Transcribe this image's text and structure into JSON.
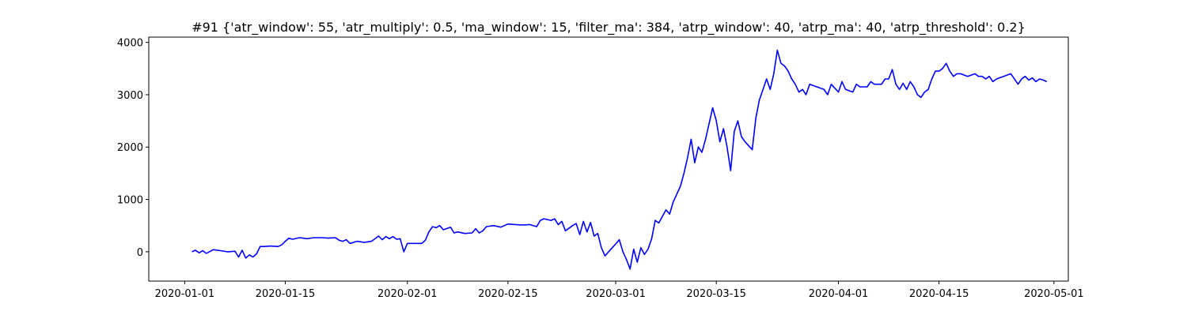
{
  "chart_data": {
    "type": "line",
    "title": "#91 {'atr_window': 55, 'atr_multiply': 0.5, 'ma_window': 15, 'filter_ma': 384, 'atrp_window': 40, 'atrp_ma': 40, 'atrp_threshold': 0.2}",
    "xlabel": "",
    "ylabel": "",
    "x_type": "date",
    "xlim": [
      "2019-12-27",
      "2020-05-03"
    ],
    "ylim": [
      -560,
      4100
    ],
    "x_ticks": [
      {
        "value": "2020-01-01",
        "label": "2020-01-01"
      },
      {
        "value": "2020-01-15",
        "label": "2020-01-15"
      },
      {
        "value": "2020-02-01",
        "label": "2020-02-01"
      },
      {
        "value": "2020-02-15",
        "label": "2020-02-15"
      },
      {
        "value": "2020-03-01",
        "label": "2020-03-01"
      },
      {
        "value": "2020-03-15",
        "label": "2020-03-15"
      },
      {
        "value": "2020-04-01",
        "label": "2020-04-01"
      },
      {
        "value": "2020-04-15",
        "label": "2020-04-15"
      },
      {
        "value": "2020-05-01",
        "label": "2020-05-01"
      }
    ],
    "y_ticks": [
      {
        "value": 0,
        "label": "0"
      },
      {
        "value": 1000,
        "label": "1000"
      },
      {
        "value": 2000,
        "label": "2000"
      },
      {
        "value": 3000,
        "label": "3000"
      },
      {
        "value": 4000,
        "label": "4000"
      }
    ],
    "grid": false,
    "legend": "none",
    "series": [
      {
        "color": "#0000ff",
        "points": [
          [
            "2020-01-02",
            0
          ],
          [
            "2020-01-02T12:00",
            30
          ],
          [
            "2020-01-03",
            -20
          ],
          [
            "2020-01-03T12:00",
            20
          ],
          [
            "2020-01-04",
            -30
          ],
          [
            "2020-01-05",
            40
          ],
          [
            "2020-01-06",
            20
          ],
          [
            "2020-01-07",
            0
          ],
          [
            "2020-01-08",
            10
          ],
          [
            "2020-01-08T12:00",
            -100
          ],
          [
            "2020-01-09",
            30
          ],
          [
            "2020-01-09T12:00",
            -120
          ],
          [
            "2020-01-10",
            -60
          ],
          [
            "2020-01-10T12:00",
            -100
          ],
          [
            "2020-01-11",
            -40
          ],
          [
            "2020-01-11T12:00",
            100
          ],
          [
            "2020-01-12",
            100
          ],
          [
            "2020-01-13",
            110
          ],
          [
            "2020-01-14",
            100
          ],
          [
            "2020-01-14T12:00",
            130
          ],
          [
            "2020-01-15",
            200
          ],
          [
            "2020-01-15T12:00",
            260
          ],
          [
            "2020-01-16",
            240
          ],
          [
            "2020-01-17",
            270
          ],
          [
            "2020-01-18",
            250
          ],
          [
            "2020-01-19",
            270
          ],
          [
            "2020-01-20",
            270
          ],
          [
            "2020-01-21",
            260
          ],
          [
            "2020-01-22",
            270
          ],
          [
            "2020-01-22T12:00",
            220
          ],
          [
            "2020-01-23",
            200
          ],
          [
            "2020-01-23T12:00",
            230
          ],
          [
            "2020-01-24",
            160
          ],
          [
            "2020-01-25",
            200
          ],
          [
            "2020-01-26",
            180
          ],
          [
            "2020-01-27",
            200
          ],
          [
            "2020-01-28",
            300
          ],
          [
            "2020-01-28T12:00",
            230
          ],
          [
            "2020-01-29",
            290
          ],
          [
            "2020-01-29T12:00",
            250
          ],
          [
            "2020-01-30",
            290
          ],
          [
            "2020-01-30T12:00",
            240
          ],
          [
            "2020-01-31",
            250
          ],
          [
            "2020-01-31T12:00",
            0
          ],
          [
            "2020-02-01",
            160
          ],
          [
            "2020-02-02",
            160
          ],
          [
            "2020-02-03",
            160
          ],
          [
            "2020-02-03T12:00",
            220
          ],
          [
            "2020-02-04",
            380
          ],
          [
            "2020-02-04T12:00",
            480
          ],
          [
            "2020-02-05",
            460
          ],
          [
            "2020-02-05T12:00",
            500
          ],
          [
            "2020-02-06",
            420
          ],
          [
            "2020-02-07",
            470
          ],
          [
            "2020-02-07T12:00",
            360
          ],
          [
            "2020-02-08",
            380
          ],
          [
            "2020-02-09",
            350
          ],
          [
            "2020-02-10",
            360
          ],
          [
            "2020-02-10T12:00",
            440
          ],
          [
            "2020-02-11",
            360
          ],
          [
            "2020-02-11T12:00",
            400
          ],
          [
            "2020-02-12",
            480
          ],
          [
            "2020-02-13",
            500
          ],
          [
            "2020-02-14",
            470
          ],
          [
            "2020-02-15",
            530
          ],
          [
            "2020-02-16",
            520
          ],
          [
            "2020-02-17",
            510
          ],
          [
            "2020-02-18",
            520
          ],
          [
            "2020-02-19",
            480
          ],
          [
            "2020-02-19T12:00",
            600
          ],
          [
            "2020-02-20",
            630
          ],
          [
            "2020-02-21",
            600
          ],
          [
            "2020-02-21T12:00",
            630
          ],
          [
            "2020-02-22",
            520
          ],
          [
            "2020-02-22T12:00",
            580
          ],
          [
            "2020-02-23",
            400
          ],
          [
            "2020-02-24",
            500
          ],
          [
            "2020-02-24T12:00",
            540
          ],
          [
            "2020-02-25",
            330
          ],
          [
            "2020-02-25T12:00",
            580
          ],
          [
            "2020-02-26",
            380
          ],
          [
            "2020-02-26T12:00",
            560
          ],
          [
            "2020-02-27",
            300
          ],
          [
            "2020-02-27T12:00",
            350
          ],
          [
            "2020-02-28",
            80
          ],
          [
            "2020-02-28T12:00",
            -80
          ],
          [
            "2020-02-29",
            0
          ],
          [
            "2020-03-01",
            150
          ],
          [
            "2020-03-01T12:00",
            230
          ],
          [
            "2020-03-02",
            0
          ],
          [
            "2020-03-02T12:00",
            -150
          ],
          [
            "2020-03-03",
            -330
          ],
          [
            "2020-03-03T12:00",
            50
          ],
          [
            "2020-03-04",
            -200
          ],
          [
            "2020-03-04T12:00",
            80
          ],
          [
            "2020-03-05",
            -50
          ],
          [
            "2020-03-05T12:00",
            50
          ],
          [
            "2020-03-06",
            250
          ],
          [
            "2020-03-06T12:00",
            600
          ],
          [
            "2020-03-07",
            550
          ],
          [
            "2020-03-08",
            800
          ],
          [
            "2020-03-08T12:00",
            720
          ],
          [
            "2020-03-09",
            950
          ],
          [
            "2020-03-09T12:00",
            1100
          ],
          [
            "2020-03-10",
            1250
          ],
          [
            "2020-03-10T12:00",
            1500
          ],
          [
            "2020-03-11",
            1800
          ],
          [
            "2020-03-11T12:00",
            2150
          ],
          [
            "2020-03-12",
            1700
          ],
          [
            "2020-03-12T12:00",
            2000
          ],
          [
            "2020-03-13",
            1900
          ],
          [
            "2020-03-13T12:00",
            2150
          ],
          [
            "2020-03-14",
            2450
          ],
          [
            "2020-03-14T12:00",
            2750
          ],
          [
            "2020-03-15",
            2500
          ],
          [
            "2020-03-15T12:00",
            2100
          ],
          [
            "2020-03-16",
            2350
          ],
          [
            "2020-03-16T12:00",
            2000
          ],
          [
            "2020-03-17",
            1550
          ],
          [
            "2020-03-17T12:00",
            2300
          ],
          [
            "2020-03-18",
            2500
          ],
          [
            "2020-03-18T12:00",
            2200
          ],
          [
            "2020-03-19",
            2100
          ],
          [
            "2020-03-20",
            1950
          ],
          [
            "2020-03-20T12:00",
            2550
          ],
          [
            "2020-03-21",
            2900
          ],
          [
            "2020-03-21T12:00",
            3100
          ],
          [
            "2020-03-22",
            3300
          ],
          [
            "2020-03-22T12:00",
            3100
          ],
          [
            "2020-03-23",
            3400
          ],
          [
            "2020-03-23T12:00",
            3850
          ],
          [
            "2020-03-24",
            3600
          ],
          [
            "2020-03-24T12:00",
            3550
          ],
          [
            "2020-03-25",
            3450
          ],
          [
            "2020-03-25T12:00",
            3300
          ],
          [
            "2020-03-26",
            3200
          ],
          [
            "2020-03-26T12:00",
            3050
          ],
          [
            "2020-03-27",
            3100
          ],
          [
            "2020-03-27T12:00",
            3000
          ],
          [
            "2020-03-28",
            3200
          ],
          [
            "2020-03-29",
            3150
          ],
          [
            "2020-03-30",
            3100
          ],
          [
            "2020-03-30T12:00",
            3000
          ],
          [
            "2020-03-31",
            3200
          ],
          [
            "2020-04-01",
            3050
          ],
          [
            "2020-04-01T12:00",
            3250
          ],
          [
            "2020-04-02",
            3100
          ],
          [
            "2020-04-03",
            3050
          ],
          [
            "2020-04-03T12:00",
            3200
          ],
          [
            "2020-04-04",
            3150
          ],
          [
            "2020-04-05",
            3150
          ],
          [
            "2020-04-05T12:00",
            3250
          ],
          [
            "2020-04-06",
            3200
          ],
          [
            "2020-04-07",
            3200
          ],
          [
            "2020-04-07T12:00",
            3300
          ],
          [
            "2020-04-08",
            3300
          ],
          [
            "2020-04-08T12:00",
            3480
          ],
          [
            "2020-04-09",
            3200
          ],
          [
            "2020-04-09T12:00",
            3100
          ],
          [
            "2020-04-10",
            3220
          ],
          [
            "2020-04-10T12:00",
            3100
          ],
          [
            "2020-04-11",
            3250
          ],
          [
            "2020-04-11T12:00",
            3150
          ],
          [
            "2020-04-12",
            3000
          ],
          [
            "2020-04-12T12:00",
            2950
          ],
          [
            "2020-04-13",
            3050
          ],
          [
            "2020-04-13T12:00",
            3100
          ],
          [
            "2020-04-14",
            3300
          ],
          [
            "2020-04-14T12:00",
            3450
          ],
          [
            "2020-04-15",
            3450
          ],
          [
            "2020-04-15T12:00",
            3500
          ],
          [
            "2020-04-16",
            3600
          ],
          [
            "2020-04-16T12:00",
            3450
          ],
          [
            "2020-04-17",
            3350
          ],
          [
            "2020-04-17T12:00",
            3400
          ],
          [
            "2020-04-18",
            3400
          ],
          [
            "2020-04-19",
            3350
          ],
          [
            "2020-04-20",
            3400
          ],
          [
            "2020-04-20T12:00",
            3350
          ],
          [
            "2020-04-21",
            3350
          ],
          [
            "2020-04-21T12:00",
            3300
          ],
          [
            "2020-04-22",
            3350
          ],
          [
            "2020-04-22T12:00",
            3250
          ],
          [
            "2020-04-23",
            3300
          ],
          [
            "2020-04-24",
            3350
          ],
          [
            "2020-04-25",
            3400
          ],
          [
            "2020-04-26",
            3200
          ],
          [
            "2020-04-26T12:00",
            3300
          ],
          [
            "2020-04-27",
            3350
          ],
          [
            "2020-04-27T12:00",
            3280
          ],
          [
            "2020-04-28",
            3320
          ],
          [
            "2020-04-28T12:00",
            3250
          ],
          [
            "2020-04-29",
            3300
          ],
          [
            "2020-04-29T12:00",
            3280
          ],
          [
            "2020-04-30",
            3250
          ]
        ]
      }
    ]
  }
}
